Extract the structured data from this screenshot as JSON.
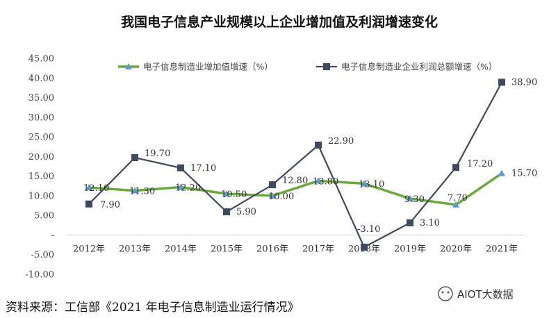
{
  "chart_data": {
    "type": "line",
    "title": "我国电子信息产业规模以上企业增加值及利润增速变化",
    "categories": [
      "2012年",
      "2013年",
      "2014年",
      "2015年",
      "2016年",
      "2017年",
      "2018年",
      "2019年",
      "2020年",
      "2021年"
    ],
    "ylim": [
      -10,
      45
    ],
    "yticks": [
      "-10.00",
      "-5.00",
      "-",
      "5.00",
      "10.00",
      "15.00",
      "20.00",
      "25.00",
      "30.00",
      "35.00",
      "40.00",
      "45.00"
    ],
    "ytick_values": [
      -10,
      -5,
      0,
      5,
      10,
      15,
      20,
      25,
      30,
      35,
      40,
      45
    ],
    "grid": false,
    "legend_position": "top",
    "series": [
      {
        "name": "电子信息制造业增加值增速（%）",
        "color": "#6aaa3a",
        "marker": "triangle",
        "values": [
          12.1,
          11.3,
          12.2,
          10.5,
          10.0,
          13.8,
          13.1,
          9.3,
          7.7,
          15.7
        ],
        "labels": [
          "12.10",
          "11.30",
          "12.20",
          "10.50",
          "10.00",
          "13.80",
          "13.10",
          "9.30",
          "7.70",
          "15.70"
        ]
      },
      {
        "name": "电子信息制造业企业利润总额增速（%）",
        "color": "#3e4a5e",
        "marker": "square",
        "values": [
          7.9,
          19.7,
          17.1,
          5.9,
          12.8,
          22.9,
          -3.1,
          3.1,
          17.2,
          38.9
        ],
        "labels": [
          "7.90",
          "19.70",
          "17.10",
          "5.90",
          "12.80",
          "22.90",
          "-3.10",
          "3.10",
          "17.20",
          "38.90"
        ]
      }
    ]
  },
  "source_text": "资料来源：工信部《2021 年电子信息制造业运行情况》",
  "watermark_text": "AIOT大数据",
  "colors": {
    "label_marker": "#5a9bd5"
  }
}
